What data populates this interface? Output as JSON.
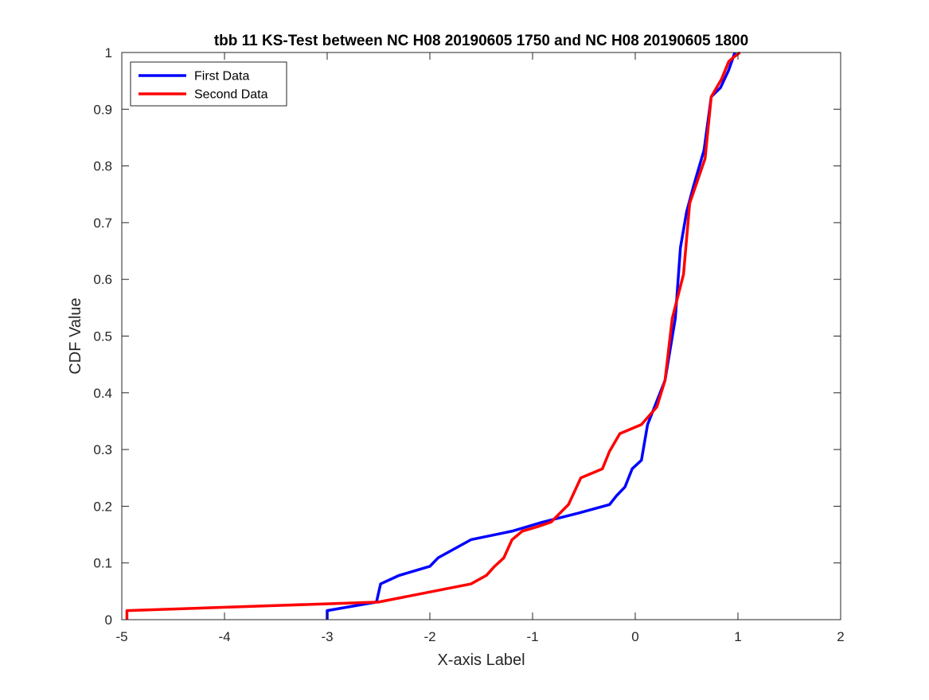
{
  "chart_data": {
    "type": "line",
    "title": "tbb 11 KS-Test between NC H08 20190605 1750 and NC H08 20190605 1800",
    "xlabel": "X-axis Label",
    "ylabel": "CDF Value",
    "xlim": [
      -5,
      2
    ],
    "ylim": [
      0,
      1
    ],
    "xticks": [
      -5,
      -4,
      -3,
      -2,
      -1,
      0,
      1,
      2
    ],
    "yticks": [
      0,
      0.1,
      0.2,
      0.3,
      0.4,
      0.5,
      0.6,
      0.7,
      0.8,
      0.9,
      1
    ],
    "xtick_labels": [
      "-5",
      "-4",
      "-3",
      "-2",
      "-1",
      "0",
      "1",
      "2"
    ],
    "ytick_labels": [
      "0",
      "0.1",
      "0.2",
      "0.3",
      "0.4",
      "0.5",
      "0.6",
      "0.7",
      "0.8",
      "0.9",
      "1"
    ],
    "grid": false,
    "legend": "top-left",
    "series": [
      {
        "name": "First Data",
        "color": "#0000ff",
        "x": [
          -3.0,
          -3.0,
          -2.52,
          -2.48,
          -2.3,
          -2.0,
          -1.92,
          -1.6,
          -1.2,
          -0.9,
          -0.55,
          -0.25,
          -0.18,
          -0.1,
          -0.03,
          0.06,
          0.12,
          0.29,
          0.39,
          0.44,
          0.5,
          0.57,
          0.67,
          0.74,
          0.83,
          0.91,
          0.97
        ],
        "y": [
          0.0,
          0.016,
          0.031,
          0.063,
          0.078,
          0.094,
          0.109,
          0.141,
          0.156,
          0.172,
          0.188,
          0.203,
          0.219,
          0.234,
          0.266,
          0.281,
          0.344,
          0.422,
          0.531,
          0.656,
          0.719,
          0.766,
          0.828,
          0.922,
          0.938,
          0.969,
          1.0
        ]
      },
      {
        "name": "Second Data",
        "color": "#ff0000",
        "x": [
          -4.95,
          -4.95,
          -2.5,
          -1.6,
          -1.45,
          -1.37,
          -1.28,
          -1.2,
          -1.1,
          -0.95,
          -0.82,
          -0.65,
          -0.53,
          -0.32,
          -0.25,
          -0.15,
          0.06,
          0.21,
          0.29,
          0.36,
          0.47,
          0.53,
          0.68,
          0.74,
          0.84,
          0.91,
          0.96,
          1.02
        ],
        "y": [
          0.0,
          0.016,
          0.031,
          0.063,
          0.078,
          0.094,
          0.109,
          0.141,
          0.156,
          0.164,
          0.172,
          0.203,
          0.25,
          0.266,
          0.297,
          0.328,
          0.344,
          0.375,
          0.422,
          0.531,
          0.609,
          0.734,
          0.813,
          0.922,
          0.953,
          0.984,
          0.992,
          1.0
        ]
      }
    ]
  }
}
